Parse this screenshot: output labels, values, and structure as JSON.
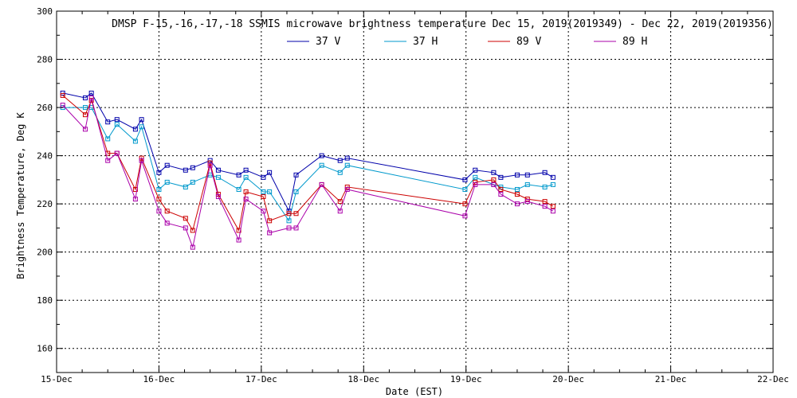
{
  "chart_data": {
    "type": "line",
    "title": "DMSP F-15,-16,-17,-18 SSMIS microwave brightness temperature Dec 15, 2019(2019349) - Dec 22, 2019(2019356)",
    "xlabel": "Date (EST)",
    "ylabel": "Brightness Temperature, Deg K",
    "xlim": [
      0,
      7
    ],
    "ylim": [
      150,
      300
    ],
    "x_tick_labels": [
      "15-Dec",
      "16-Dec",
      "17-Dec",
      "18-Dec",
      "19-Dec",
      "20-Dec",
      "21-Dec",
      "22-Dec"
    ],
    "y_ticks": [
      160,
      180,
      200,
      220,
      240,
      260,
      280,
      300
    ],
    "grid": true,
    "legend_position": "top-center",
    "series": [
      {
        "name": "37 V",
        "color": "#0000aa",
        "x": [
          0.06,
          0.28,
          0.34,
          0.5,
          0.59,
          0.77,
          0.83,
          1.0,
          1.08,
          1.26,
          1.33,
          1.5,
          1.58,
          1.78,
          1.85,
          2.02,
          2.08,
          2.27,
          2.34,
          2.59,
          2.77,
          2.84,
          3.99,
          4.09,
          4.27,
          4.34,
          4.5,
          4.6,
          4.77,
          4.85
        ],
        "y": [
          266,
          264,
          266,
          254,
          255,
          251,
          255,
          233,
          236,
          234,
          235,
          238,
          234,
          232,
          234,
          231,
          233,
          217,
          232,
          240,
          238,
          239,
          230,
          234,
          233,
          231,
          232,
          232,
          233,
          231
        ]
      },
      {
        "name": "37 H",
        "color": "#0099cc",
        "x": [
          0.06,
          0.28,
          0.34,
          0.5,
          0.59,
          0.77,
          0.83,
          1.0,
          1.08,
          1.26,
          1.33,
          1.5,
          1.58,
          1.78,
          1.85,
          2.02,
          2.08,
          2.27,
          2.34,
          2.59,
          2.77,
          2.84,
          3.99,
          4.09,
          4.27,
          4.34,
          4.5,
          4.6,
          4.77,
          4.85
        ],
        "y": [
          260,
          260,
          260,
          247,
          253,
          246,
          252,
          226,
          229,
          227,
          229,
          232,
          231,
          226,
          231,
          225,
          225,
          213,
          225,
          236,
          233,
          236,
          226,
          231,
          228,
          227,
          226,
          228,
          227,
          228
        ]
      },
      {
        "name": "89 V",
        "color": "#cc0000",
        "x": [
          0.06,
          0.28,
          0.34,
          0.5,
          0.59,
          0.77,
          0.83,
          1.0,
          1.08,
          1.26,
          1.33,
          1.5,
          1.58,
          1.78,
          1.85,
          2.02,
          2.08,
          2.27,
          2.34,
          2.59,
          2.77,
          2.84,
          3.99,
          4.09,
          4.27,
          4.34,
          4.5,
          4.6,
          4.77,
          4.85
        ],
        "y": [
          265,
          257,
          263,
          241,
          241,
          226,
          239,
          222,
          217,
          214,
          209,
          237,
          224,
          209,
          225,
          223,
          213,
          216,
          216,
          228,
          221,
          227,
          220,
          229,
          230,
          226,
          224,
          222,
          221,
          219
        ]
      },
      {
        "name": "89 H",
        "color": "#aa00aa",
        "x": [
          0.06,
          0.28,
          0.34,
          0.5,
          0.59,
          0.77,
          0.83,
          1.0,
          1.08,
          1.26,
          1.33,
          1.5,
          1.58,
          1.78,
          1.85,
          2.02,
          2.08,
          2.27,
          2.34,
          2.59,
          2.77,
          2.84,
          3.99,
          4.09,
          4.27,
          4.34,
          4.5,
          4.6,
          4.77,
          4.85
        ],
        "y": [
          261,
          251,
          264,
          238,
          241,
          222,
          238,
          217,
          212,
          210,
          202,
          236,
          223,
          205,
          222,
          217,
          208,
          210,
          210,
          228,
          217,
          226,
          215,
          228,
          228,
          224,
          220,
          221,
          219,
          217
        ]
      }
    ]
  }
}
